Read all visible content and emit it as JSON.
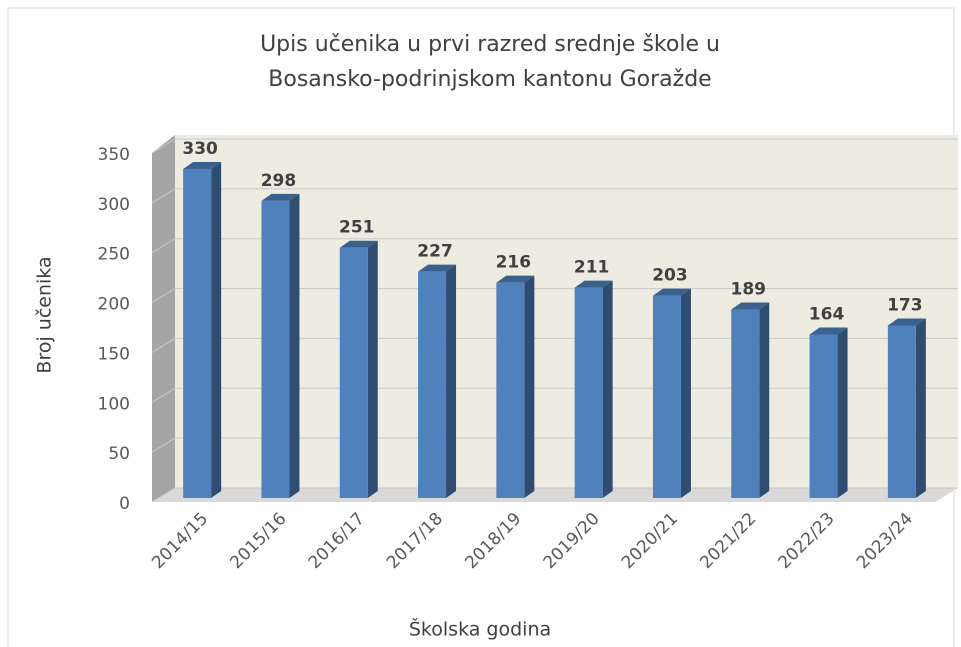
{
  "chart_data": {
    "type": "bar3d",
    "title": [
      "Upis učenika u prvi razred srednje škole u",
      "Bosansko-podrinjskom kantonu Goražde"
    ],
    "x_label": "Školska godina",
    "y_label": "Broj učenika",
    "categories": [
      "2014/15",
      "2015/16",
      "2016/17",
      "2017/18",
      "2018/19",
      "2019/20",
      "2020/21",
      "2021/22",
      "2022/23",
      "2023/24"
    ],
    "values": [
      330,
      298,
      251,
      227,
      216,
      211,
      203,
      189,
      164,
      173
    ],
    "color": "#4f81bd",
    "ylim": [
      0,
      350
    ],
    "yticks": [
      0,
      50,
      100,
      150,
      200,
      250,
      300,
      350
    ],
    "grid": true
  }
}
